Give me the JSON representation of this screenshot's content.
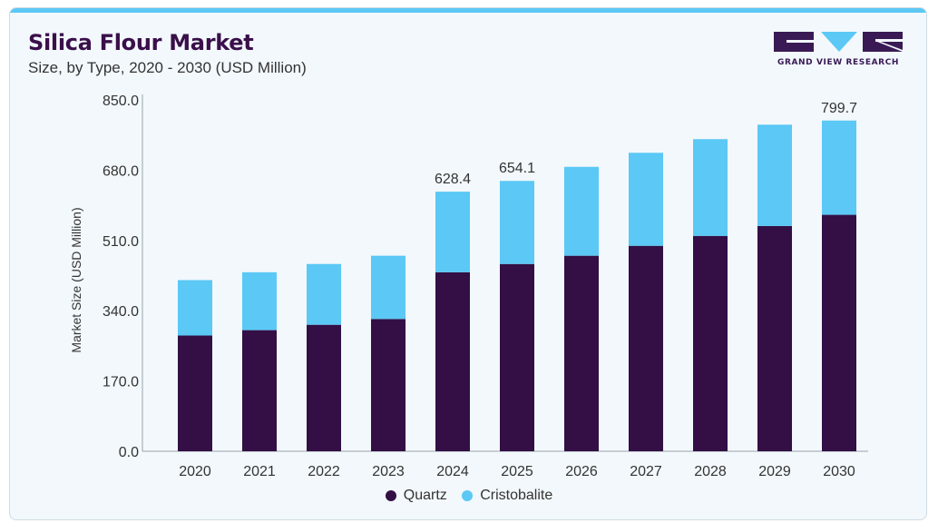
{
  "header": {
    "title": "Silica Flour Market",
    "subtitle": "Size, by Type, 2020 - 2030 (USD Million)"
  },
  "logo": {
    "text": "GRAND VIEW RESEARCH",
    "icon": "grand-view-research-logo",
    "color": "#3a1a55",
    "accent": "#5bc8f5"
  },
  "chart_data": {
    "type": "bar",
    "stacked": true,
    "categories": [
      "2020",
      "2021",
      "2022",
      "2023",
      "2024",
      "2025",
      "2026",
      "2027",
      "2028",
      "2029",
      "2030"
    ],
    "series": [
      {
        "name": "Quartz",
        "color": "#330f45",
        "values": [
          280,
          293,
          306,
          320,
          433,
          453,
          473,
          497,
          521,
          545,
          572
        ]
      },
      {
        "name": "Cristobalite",
        "color": "#5bc8f5",
        "values": [
          134,
          140,
          147,
          153,
          195,
          201,
          215,
          225,
          234,
          245,
          228
        ]
      }
    ],
    "totals_labels": [
      {
        "category": "2024",
        "label": "628.4"
      },
      {
        "category": "2025",
        "label": "654.1"
      },
      {
        "category": "2030",
        "label": "799.7"
      }
    ],
    "ylabel": "Market Size (USD Million)",
    "xlabel": "",
    "ylim": [
      0,
      850
    ],
    "yticks": [
      "0.0",
      "170.0",
      "340.0",
      "510.0",
      "680.0",
      "850.0"
    ],
    "grid": false,
    "legend_position": "bottom-center"
  }
}
